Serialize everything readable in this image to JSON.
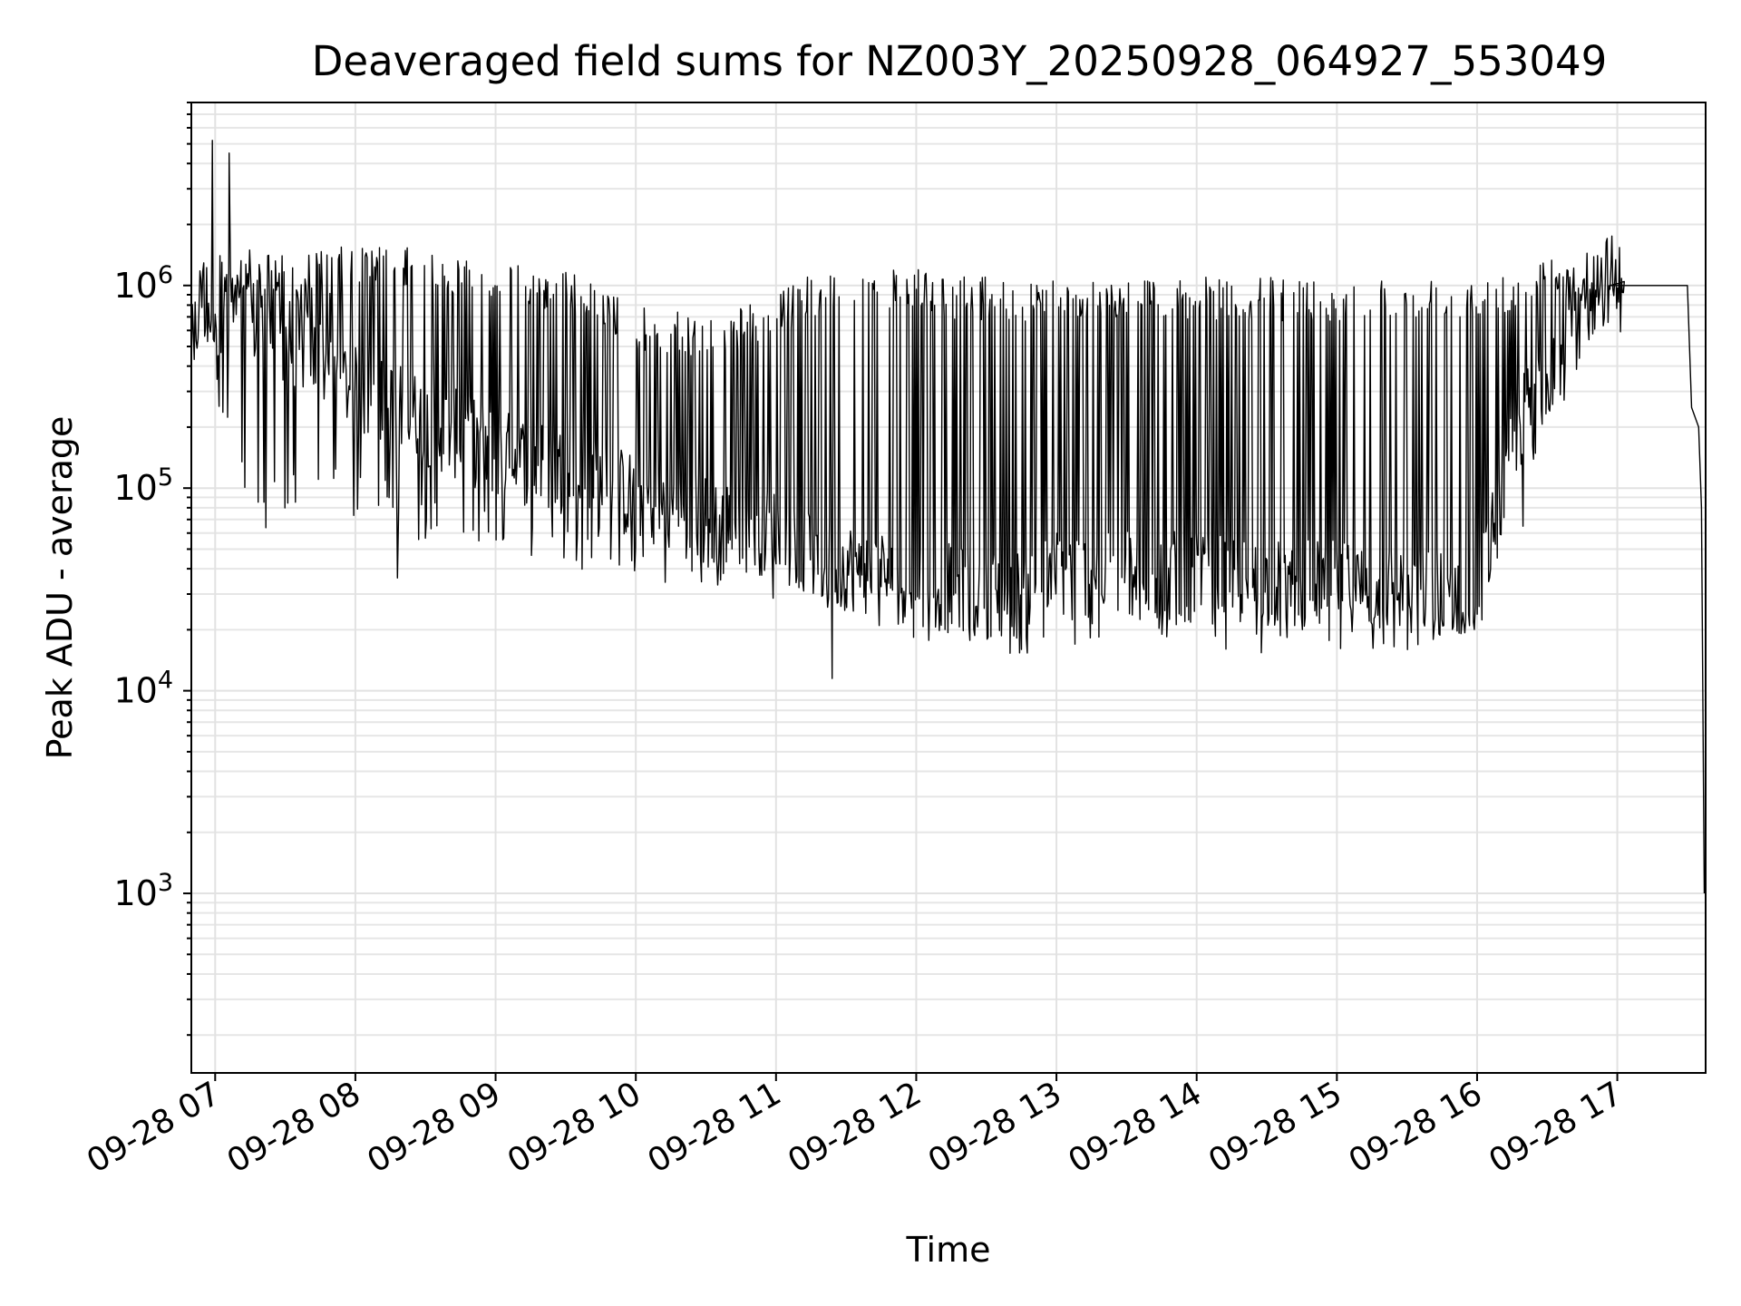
{
  "chart_data": {
    "type": "line",
    "title": "Deaveraged field sums for NZ003Y_20250928_064927_553049",
    "xlabel": "Time",
    "ylabel": "Peak ADU - average",
    "yscale": "log",
    "ylim": [
      130,
      8000000
    ],
    "xlim_hours": [
      6.83,
      17.63
    ],
    "grid": true,
    "legend": "none",
    "x_ticks": [
      {
        "hour": 7,
        "label": "09-28 07"
      },
      {
        "hour": 8,
        "label": "09-28 08"
      },
      {
        "hour": 9,
        "label": "09-28 09"
      },
      {
        "hour": 10,
        "label": "09-28 10"
      },
      {
        "hour": 11,
        "label": "09-28 11"
      },
      {
        "hour": 12,
        "label": "09-28 12"
      },
      {
        "hour": 13,
        "label": "09-28 13"
      },
      {
        "hour": 14,
        "label": "09-28 14"
      },
      {
        "hour": 15,
        "label": "09-28 15"
      },
      {
        "hour": 16,
        "label": "09-28 16"
      },
      {
        "hour": 17,
        "label": "09-28 17"
      }
    ],
    "y_ticks": [
      {
        "value": 1000,
        "base": "10",
        "exp": "3"
      },
      {
        "value": 10000,
        "base": "10",
        "exp": "4"
      },
      {
        "value": 100000,
        "base": "10",
        "exp": "5"
      },
      {
        "value": 1000000,
        "base": "10",
        "exp": "6"
      }
    ],
    "series": [
      {
        "name": "field sums",
        "color": "#000000",
        "envelope": {
          "hours": [
            6.83,
            6.9,
            7.0,
            7.2,
            7.4,
            7.6,
            7.8,
            8.0,
            8.3,
            8.6,
            9.0,
            9.5,
            10.0,
            10.5,
            11.0,
            11.3,
            11.6,
            12.0,
            12.4,
            12.8,
            13.0,
            13.5,
            14.0,
            14.5,
            15.0,
            15.5,
            16.0,
            16.3,
            16.5,
            16.7,
            16.85,
            16.95,
            17.0,
            17.05
          ],
          "upper": [
            500000,
            1400000,
            1500000,
            1500000,
            1500000,
            1500000,
            1500000,
            1600000,
            1550000,
            1500000,
            1300000,
            1200000,
            800000,
            700000,
            900000,
            1200000,
            1200000,
            1200000,
            1100000,
            1100000,
            1100000,
            1100000,
            1100000,
            1100000,
            1100000,
            1100000,
            1150000,
            1250000,
            1350000,
            1500000,
            1500000,
            1500000,
            1100000,
            1000000
          ],
          "lower_spikes": [
            400000,
            500000,
            300000,
            80000,
            60000,
            70000,
            90000,
            70000,
            60000,
            50000,
            45000,
            40000,
            35000,
            30000,
            28000,
            25000,
            22000,
            17000,
            15000,
            15000,
            16000,
            16000,
            15000,
            15000,
            15000,
            15000,
            16000,
            50000,
            200000,
            300000,
            500000,
            800000,
            900000,
            900000
          ],
          "baseline": [
            450000,
            900000,
            800000,
            700000,
            600000,
            500000,
            400000,
            300000,
            250000,
            200000,
            150000,
            120000,
            90000,
            70000,
            60000,
            45000,
            40000,
            35000,
            30000,
            30000,
            38000,
            38000,
            36000,
            34000,
            33000,
            32000,
            30000,
            200000,
            400000,
            600000,
            1000000,
            1100000,
            1000000,
            950000
          ]
        },
        "spikes": [
          {
            "hour": 6.98,
            "value": 5200000
          },
          {
            "hour": 7.1,
            "value": 4500000
          },
          {
            "hour": 8.3,
            "value": 36000
          },
          {
            "hour": 11.4,
            "value": 11500
          }
        ],
        "tail": [
          {
            "hour": 16.95,
            "value": 1000000
          },
          {
            "hour": 17.05,
            "value": 1000000
          },
          {
            "hour": 17.5,
            "value": 1000000
          },
          {
            "hour": 17.53,
            "value": 250000
          },
          {
            "hour": 17.58,
            "value": 200000
          },
          {
            "hour": 17.6,
            "value": 80000
          },
          {
            "hour": 17.62,
            "value": 1000
          }
        ]
      }
    ]
  }
}
